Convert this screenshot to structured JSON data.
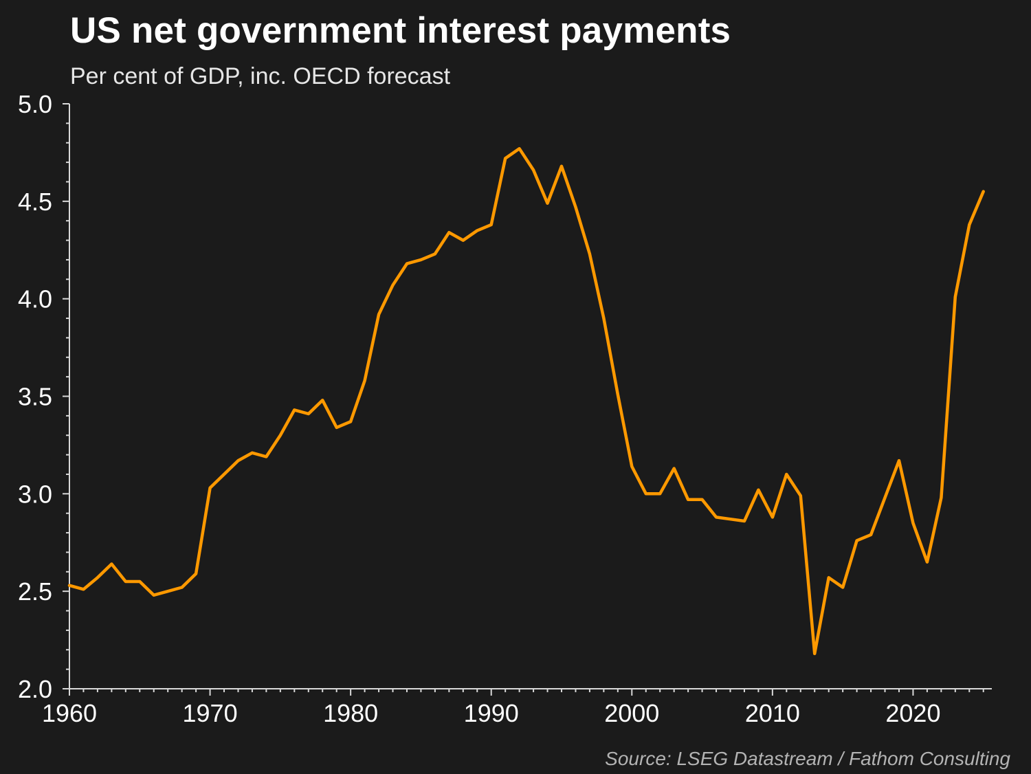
{
  "chart_data": {
    "type": "line",
    "title": "US net government interest payments",
    "subtitle": "Per cent of GDP, inc. OECD forecast",
    "source": "Source: LSEG Datastream / Fathom Consulting",
    "xlabel": "",
    "ylabel": "",
    "xlim": [
      1960,
      2025.6
    ],
    "ylim": [
      2.0,
      5.0
    ],
    "x_ticks": [
      1960,
      1970,
      1980,
      1990,
      2000,
      2010,
      2020
    ],
    "y_ticks": [
      "2.0",
      "2.5",
      "3.0",
      "3.5",
      "4.0",
      "4.5",
      "5.0"
    ],
    "grid": false,
    "line_color": "#ff9900",
    "series": [
      {
        "x": [
          1960,
          1961,
          1962,
          1963,
          1964,
          1965,
          1966,
          1967,
          1968,
          1969,
          1970,
          1971,
          1972,
          1973,
          1974,
          1975,
          1976,
          1977,
          1978,
          1979,
          1980,
          1981,
          1982,
          1983,
          1984,
          1985,
          1986,
          1987,
          1988,
          1989,
          1990,
          1991,
          1992,
          1993,
          1994,
          1995,
          1996,
          1997,
          1998,
          1999,
          2000,
          2001,
          2002,
          2003,
          2004,
          2005,
          2006,
          2007,
          2008,
          2009,
          2010,
          2011,
          2012,
          2013,
          2014,
          2015,
          2016,
          2017,
          2018,
          2019,
          2020,
          2021,
          2022,
          2023,
          2024,
          2025
        ],
        "values": [
          2.53,
          2.51,
          2.57,
          2.64,
          2.55,
          2.55,
          2.48,
          2.5,
          2.52,
          2.59,
          3.03,
          3.1,
          3.17,
          3.21,
          3.19,
          3.3,
          3.43,
          3.41,
          3.48,
          3.34,
          3.37,
          3.58,
          3.92,
          4.07,
          4.18,
          4.2,
          4.23,
          4.34,
          4.3,
          4.35,
          4.38,
          4.72,
          4.77,
          4.66,
          4.49,
          4.68,
          4.47,
          4.23,
          3.9,
          3.51,
          3.14,
          3.0,
          3.0,
          3.13,
          2.97,
          2.97,
          2.88,
          2.87,
          2.86,
          3.02,
          2.88,
          3.1,
          2.99,
          2.18,
          2.57,
          2.52,
          2.76,
          2.79,
          2.98,
          3.17,
          2.85,
          2.65,
          2.98,
          4.01,
          4.38,
          4.55
        ]
      }
    ]
  }
}
